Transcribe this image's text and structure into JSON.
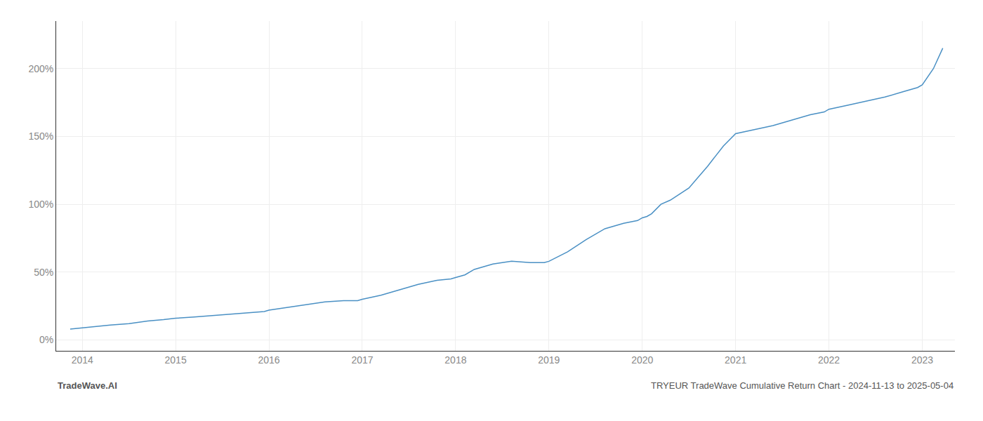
{
  "chart_data": {
    "type": "line",
    "annotations": [
      "TradeWave.AI",
      "TRYEUR TradeWave Cumulative Return Chart - 2024-11-13 to 2025-05-04"
    ],
    "x": [
      2013.87,
      2014.0,
      2014.15,
      2014.3,
      2014.5,
      2014.7,
      2014.87,
      2015.0,
      2015.2,
      2015.4,
      2015.6,
      2015.8,
      2015.95,
      2016.0,
      2016.2,
      2016.4,
      2016.6,
      2016.8,
      2016.95,
      2017.0,
      2017.2,
      2017.4,
      2017.6,
      2017.8,
      2017.95,
      2018.0,
      2018.1,
      2018.2,
      2018.4,
      2018.6,
      2018.8,
      2018.95,
      2019.0,
      2019.2,
      2019.4,
      2019.6,
      2019.8,
      2019.95,
      2020.0,
      2020.05,
      2020.1,
      2020.2,
      2020.3,
      2020.5,
      2020.7,
      2020.87,
      2021.0,
      2021.2,
      2021.4,
      2021.6,
      2021.8,
      2021.95,
      2022.0,
      2022.2,
      2022.4,
      2022.6,
      2022.8,
      2022.95,
      2023.0,
      2023.12,
      2023.22
    ],
    "values": [
      8,
      9,
      10,
      11,
      12,
      14,
      15,
      16,
      17,
      18,
      19,
      20,
      21,
      22,
      24,
      26,
      28,
      29,
      29,
      30,
      33,
      37,
      41,
      44,
      45,
      46,
      48,
      52,
      56,
      58,
      57,
      57,
      58,
      65,
      74,
      82,
      86,
      88,
      90,
      91,
      93,
      100,
      103,
      112,
      128,
      143,
      152,
      155,
      158,
      162,
      166,
      168,
      170,
      173,
      176,
      179,
      183,
      186,
      188,
      200,
      215
    ],
    "color": "#4a90c4",
    "xlim": [
      2013.72,
      2023.35
    ],
    "ylim": [
      -8,
      235
    ],
    "xticks": [
      2014,
      2015,
      2016,
      2017,
      2018,
      2019,
      2020,
      2021,
      2022,
      2023
    ],
    "yticks": [
      {
        "value": 0,
        "label": "0%"
      },
      {
        "value": 50,
        "label": "50%"
      },
      {
        "value": 100,
        "label": "100%"
      },
      {
        "value": 150,
        "label": "150%"
      },
      {
        "value": 200,
        "label": "200%"
      }
    ],
    "grid": true
  }
}
